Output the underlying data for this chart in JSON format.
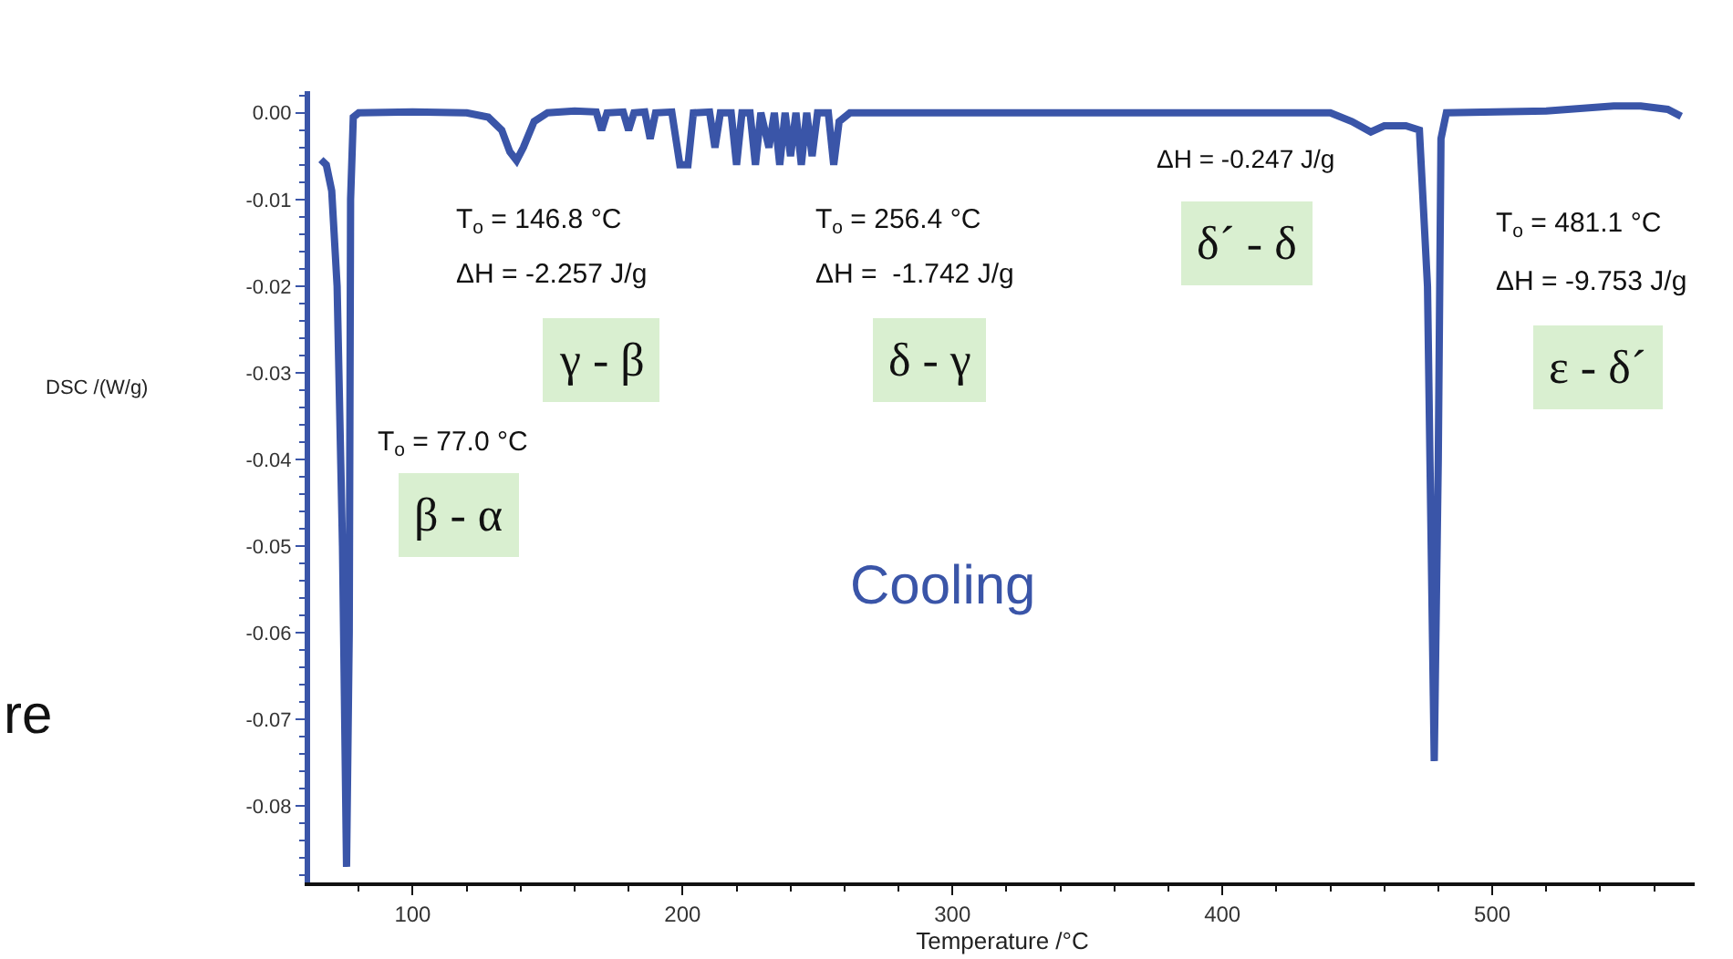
{
  "chart_data": {
    "type": "line",
    "xlabel": "Temperature /°C",
    "ylabel": "DSC /(W/g)",
    "xlim": [
      62,
      575
    ],
    "ylim": [
      -0.0888,
      0.0025
    ],
    "xticks": [
      100,
      200,
      300,
      400,
      500
    ],
    "yticks": [
      {
        "value": 0,
        "label": "0.00"
      },
      {
        "value": -0.01,
        "label": "-0.01"
      },
      {
        "value": -0.02,
        "label": "-0.02"
      },
      {
        "value": -0.03,
        "label": "-0.03"
      },
      {
        "value": -0.04,
        "label": "-0.04"
      },
      {
        "value": -0.05,
        "label": "-0.05"
      },
      {
        "value": -0.06,
        "label": "-0.06"
      },
      {
        "value": -0.07,
        "label": "-0.07"
      },
      {
        "value": -0.08,
        "label": "-0.08"
      }
    ],
    "marker": "none",
    "line_style": "solid",
    "series": [
      {
        "color": "#3a55a8",
        "x": [
          66,
          68,
          70,
          72,
          74,
          75.5,
          76.5,
          77,
          78,
          80,
          100,
          120,
          128,
          133,
          136,
          138.5,
          141,
          145,
          150,
          160,
          168,
          170,
          172,
          178,
          180,
          182,
          186,
          188,
          190,
          196,
          199,
          202,
          204,
          210,
          212,
          214,
          218,
          220,
          222,
          225,
          227,
          229,
          232,
          234,
          236,
          238,
          240,
          242,
          244,
          246,
          248,
          250,
          254,
          256,
          258,
          262,
          300,
          350,
          400,
          440,
          448,
          455,
          460,
          468,
          473,
          476,
          478.5,
          480,
          481,
          483,
          520,
          545,
          555,
          565,
          570
        ],
        "values": [
          -0.0054,
          -0.006,
          -0.009,
          -0.02,
          -0.05,
          -0.087,
          -0.06,
          -0.01,
          -0.0005,
          0,
          0.0001,
          0,
          -0.0005,
          -0.002,
          -0.0045,
          -0.0055,
          -0.004,
          -0.001,
          0,
          0.0002,
          0.0001,
          -0.002,
          0,
          0.0001,
          -0.002,
          0,
          0.0001,
          -0.003,
          0,
          0.0001,
          -0.006,
          -0.006,
          0,
          0.0001,
          -0.004,
          0,
          0,
          -0.006,
          0,
          0,
          -0.006,
          0,
          -0.004,
          0,
          -0.006,
          0,
          -0.005,
          0,
          -0.006,
          0,
          -0.005,
          0,
          0,
          -0.006,
          -0.001,
          0,
          0,
          0,
          0,
          0,
          -0.001,
          -0.0022,
          -0.0015,
          -0.0015,
          -0.002,
          -0.02,
          -0.0748,
          -0.04,
          -0.003,
          0,
          0.0002,
          0.0008,
          0.0008,
          0.0004,
          -0.0004
        ]
      }
    ],
    "annotations": [
      "T$_{o}$ = 146.8 °C",
      "ΔH = -2.257 J/g",
      "γ - β",
      "T$_{o}$ = 256.4 °C",
      "ΔH =  -1.742 J/g",
      "δ - γ",
      "ΔH = -0.247 J/g",
      "δ´ - δ",
      "T$_{o}$ = 481.1 °C",
      "ΔH = -9.753 J/g",
      "ε - δ´",
      "T$_{o}$ = 77.0 °C",
      "β - α",
      "Cooling",
      "re"
    ]
  }
}
